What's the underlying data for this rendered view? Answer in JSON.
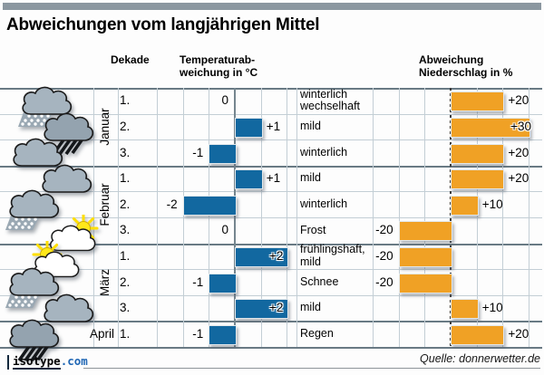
{
  "title": "Abweichungen vom langjährigen Mittel",
  "headers": {
    "dekade": "Dekade",
    "temperature": "Temperaturab-\nweichung in °C",
    "precipitation": "Abweichung\nNiederschlag in %"
  },
  "rows": [
    {
      "month": "Januar",
      "dekade": "1.",
      "icon": "snow-cloud",
      "temp_value": 0,
      "temp_label": "0",
      "weather": "winterlich\nwechselhaft",
      "precip_value": 20,
      "precip_label": "+20"
    },
    {
      "month": "Januar",
      "dekade": "2.",
      "icon": "rain-cloud",
      "temp_value": 1,
      "temp_label": "+1",
      "weather": "mild",
      "precip_value": 30,
      "precip_label": "+30"
    },
    {
      "month": "Januar",
      "dekade": "3.",
      "icon": "cloud",
      "temp_value": -1,
      "temp_label": "-1",
      "weather": "winterlich",
      "precip_value": 20,
      "precip_label": "+20"
    },
    {
      "month": "Februar",
      "dekade": "1.",
      "icon": "cloud",
      "temp_value": 1,
      "temp_label": "+1",
      "weather": "mild",
      "precip_value": 20,
      "precip_label": "+20"
    },
    {
      "month": "Februar",
      "dekade": "2.",
      "icon": "snow-cloud",
      "temp_value": -2,
      "temp_label": "-2",
      "weather": "winterlich",
      "precip_value": 10,
      "precip_label": "+10"
    },
    {
      "month": "Februar",
      "dekade": "3.",
      "icon": "sun-cloud-right",
      "temp_value": 0,
      "temp_label": "0",
      "weather": "Frost",
      "precip_value": -20,
      "precip_label": "-20"
    },
    {
      "month": "März",
      "dekade": "1.",
      "icon": "sun-cloud-left",
      "temp_value": 2,
      "temp_label": "+2",
      "weather": "frühlingshaft,\nmild",
      "precip_value": -20,
      "precip_label": "-20"
    },
    {
      "month": "März",
      "dekade": "2.",
      "icon": "snow-cloud",
      "temp_value": -1,
      "temp_label": "-1",
      "weather": "Schnee",
      "precip_value": -20,
      "precip_label": "-20"
    },
    {
      "month": "März",
      "dekade": "3.",
      "icon": "cloud",
      "temp_value": 2,
      "temp_label": "+2",
      "weather": "mild",
      "precip_value": 10,
      "precip_label": "+10"
    },
    {
      "month": "April",
      "dekade": "1.",
      "icon": "rain-cloud",
      "temp_value": -1,
      "temp_label": "-1",
      "weather": "Regen",
      "precip_value": 20,
      "precip_label": "+20"
    }
  ],
  "chart_data": [
    {
      "type": "bar",
      "orientation": "horizontal",
      "title": "Temperaturabweichung in °C",
      "categories": [
        "Januar 1.",
        "Januar 2.",
        "Januar 3.",
        "Februar 1.",
        "Februar 2.",
        "Februar 3.",
        "März 1.",
        "März 2.",
        "März 3.",
        "April 1."
      ],
      "values": [
        0,
        1,
        -1,
        1,
        -2,
        0,
        2,
        -1,
        2,
        -1
      ],
      "xlabel": "Temperaturab-weichung in °C",
      "xlim": [
        -3,
        2
      ],
      "grid": true,
      "bar_color": "#1268a0"
    },
    {
      "type": "bar",
      "orientation": "horizontal",
      "title": "Abweichung Niederschlag in %",
      "categories": [
        "Januar 1.",
        "Januar 2.",
        "Januar 3.",
        "Februar 1.",
        "Februar 2.",
        "Februar 3.",
        "März 1.",
        "März 2.",
        "März 3.",
        "April 1."
      ],
      "values": [
        20,
        30,
        20,
        20,
        10,
        -20,
        -20,
        -20,
        10,
        20
      ],
      "annotations": [
        "winterlich wechselhaft",
        "mild",
        "winterlich",
        "mild",
        "winterlich",
        "Frost",
        "frühlingshaft, mild",
        "Schnee",
        "mild",
        "Regen"
      ],
      "xlabel": "Abweichung Niederschlag in %",
      "xlim": [
        -30,
        30
      ],
      "grid": true,
      "bar_color": "#f0a125"
    }
  ],
  "footer": {
    "logo_name": "isotype",
    "logo_tld": ".com",
    "source": "Quelle: donnerwetter.de"
  },
  "colors": {
    "temp_bar": "#1268a0",
    "precip_bar": "#f0a125",
    "accent_bar": "#8b97a0"
  }
}
